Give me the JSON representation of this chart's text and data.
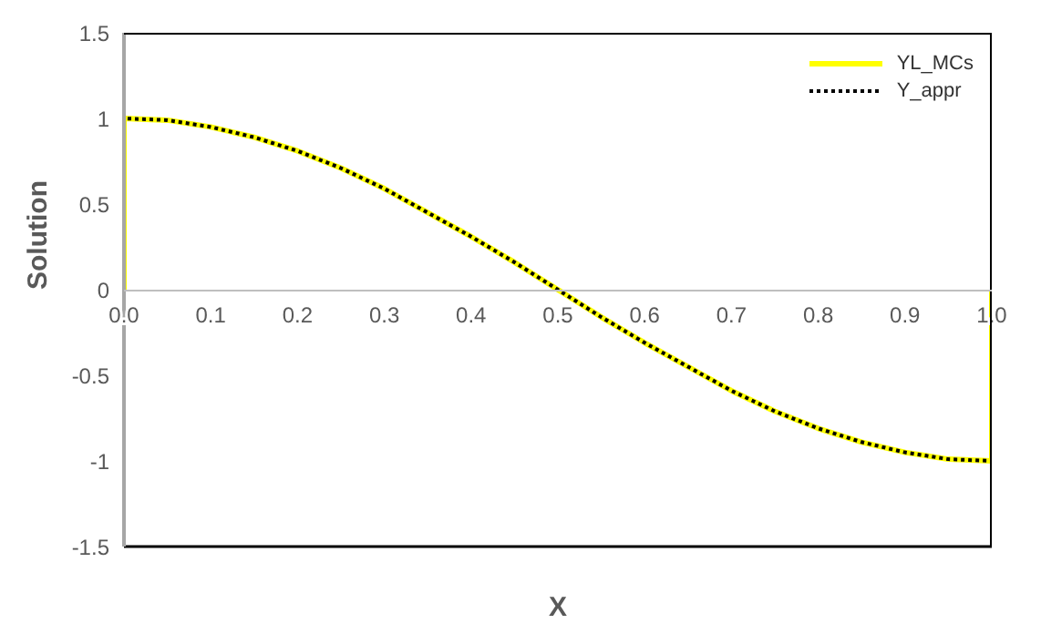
{
  "chart_data": {
    "type": "line",
    "xlabel": "X",
    "ylabel": "Solution",
    "x": [
      0,
      0,
      0.05,
      0.1,
      0.15,
      0.2,
      0.25,
      0.3,
      0.35,
      0.4,
      0.45,
      0.5,
      0.55,
      0.6,
      0.65,
      0.7,
      0.75,
      0.8,
      0.85,
      0.9,
      0.95,
      1,
      1
    ],
    "series": [
      {
        "name": "YL_MCs",
        "color": "#ffff00",
        "line_style": "solid",
        "values": [
          0,
          1,
          0.99,
          0.95,
          0.89,
          0.81,
          0.71,
          0.59,
          0.45,
          0.31,
          0.16,
          0,
          -0.16,
          -0.31,
          -0.45,
          -0.59,
          -0.71,
          -0.81,
          -0.89,
          -0.95,
          -0.99,
          -1,
          0
        ]
      },
      {
        "name": "Y_appr",
        "color": "#000000",
        "line_style": "dotted",
        "values": [
          0,
          1,
          0.99,
          0.95,
          0.89,
          0.81,
          0.71,
          0.59,
          0.45,
          0.31,
          0.16,
          0,
          -0.16,
          -0.31,
          -0.45,
          -0.59,
          -0.71,
          -0.81,
          -0.89,
          -0.95,
          -0.99,
          -1,
          0
        ]
      }
    ],
    "xlim": [
      0,
      1
    ],
    "xticks": [
      {
        "value": 0,
        "label": "0.0"
      },
      0.1,
      0.2,
      0.3,
      0.4,
      0.5,
      0.6,
      0.7,
      0.8,
      0.9,
      {
        "value": 1,
        "label": "1.0"
      }
    ],
    "ylim": [
      -1.5,
      1.5
    ],
    "yticks": [
      -1.5,
      -1,
      -0.5,
      0,
      0.5,
      1,
      1.5
    ],
    "grid": false,
    "legend": "top right",
    "marker": "none"
  }
}
